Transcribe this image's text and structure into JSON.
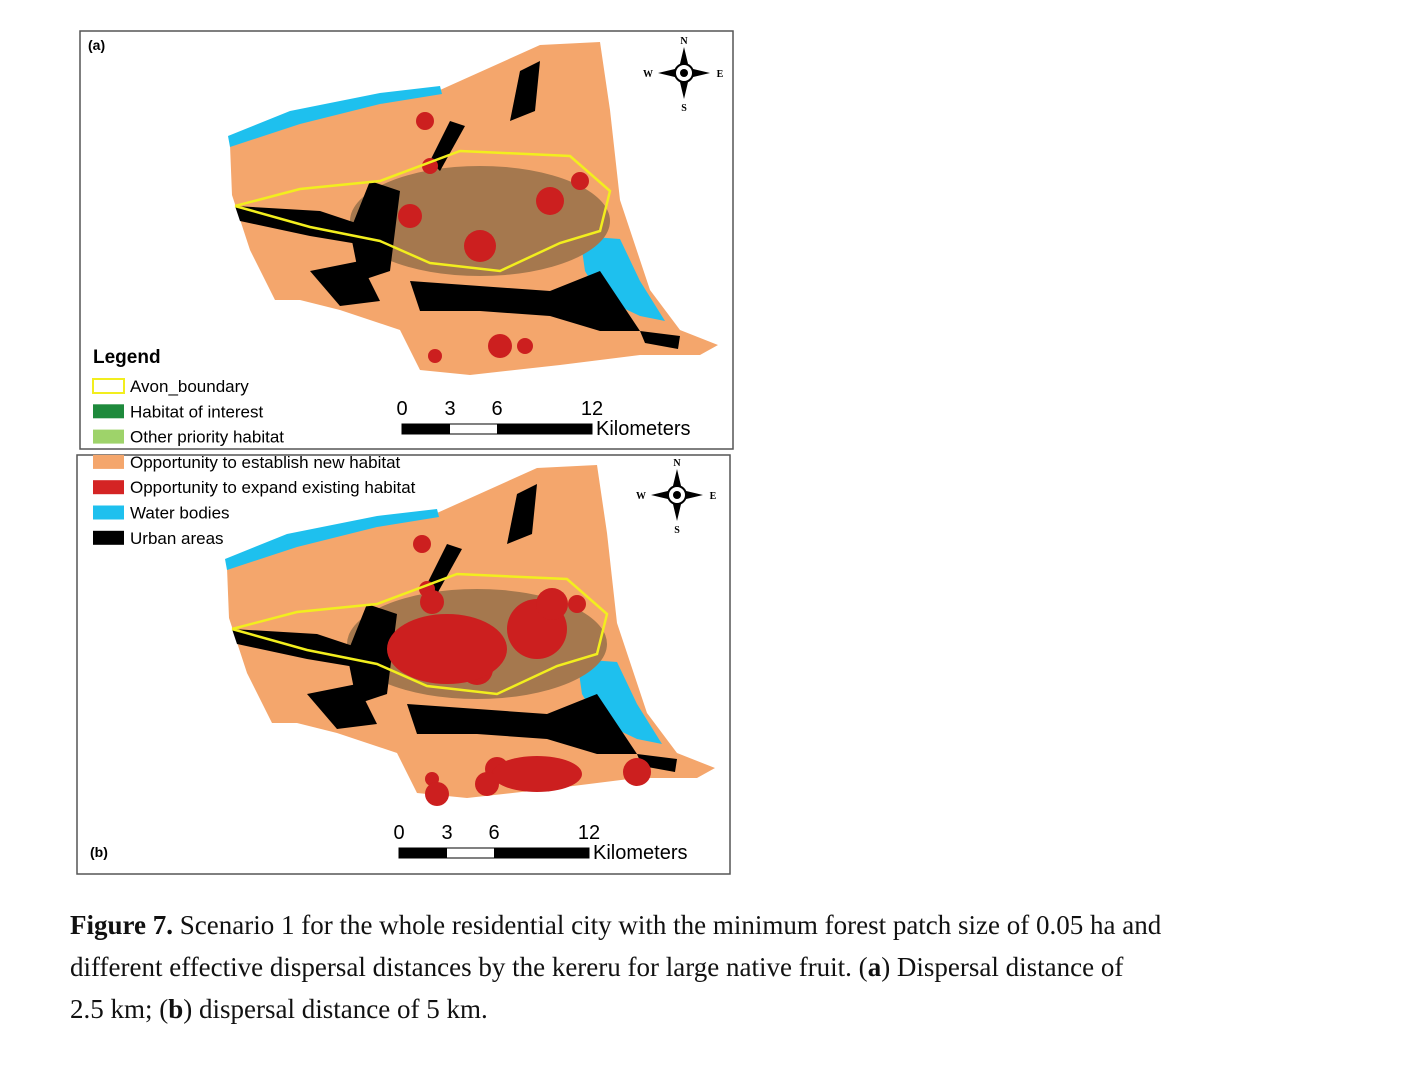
{
  "panels": [
    {
      "label": "(a)",
      "compass": {
        "n": "N",
        "s": "S",
        "w": "W",
        "e": "E"
      },
      "scale": {
        "labels": [
          "0",
          "3",
          "6",
          "12"
        ],
        "unit": "Kilometers"
      }
    },
    {
      "label": "(b)",
      "compass": {
        "n": "N",
        "s": "S",
        "w": "W",
        "e": "E"
      },
      "scale": {
        "labels": [
          "0",
          "3",
          "6",
          "12"
        ],
        "unit": "Kilometers"
      }
    }
  ],
  "legend": {
    "title": "Legend",
    "items": [
      {
        "label": "Avon_boundary",
        "color": "#f2ee1e",
        "style": "outline"
      },
      {
        "label": "Habitat of interest",
        "color": "#1e8a3c",
        "style": "fill"
      },
      {
        "label": "Other priority habitat",
        "color": "#9ed36a",
        "style": "fill"
      },
      {
        "label": "Opportunity to establish new habitat",
        "color": "#f4a66c",
        "style": "fill"
      },
      {
        "label": "Opportunity to expand existing habitat",
        "color": "#d42424",
        "style": "fill"
      },
      {
        "label": "Water bodies",
        "color": "#1ec0ee",
        "style": "fill"
      },
      {
        "label": "Urban areas",
        "color": "#000000",
        "style": "fill"
      }
    ]
  },
  "caption": {
    "label": "Figure 7.",
    "segments": [
      {
        "text": " Scenario 1 for the whole residential city with the minimum forest patch size of 0.05 ha and",
        "bold": false
      },
      {
        "text": "different effective dispersal distances by the kereru for large native fruit. (",
        "bold": false,
        "newline": true
      },
      {
        "text": "a",
        "bold": true
      },
      {
        "text": ") Dispersal distance of",
        "bold": false
      },
      {
        "text": "2.5 km; (",
        "bold": false,
        "newline": true
      },
      {
        "text": "b",
        "bold": true
      },
      {
        "text": ") dispersal distance of 5 km.",
        "bold": false
      }
    ]
  }
}
